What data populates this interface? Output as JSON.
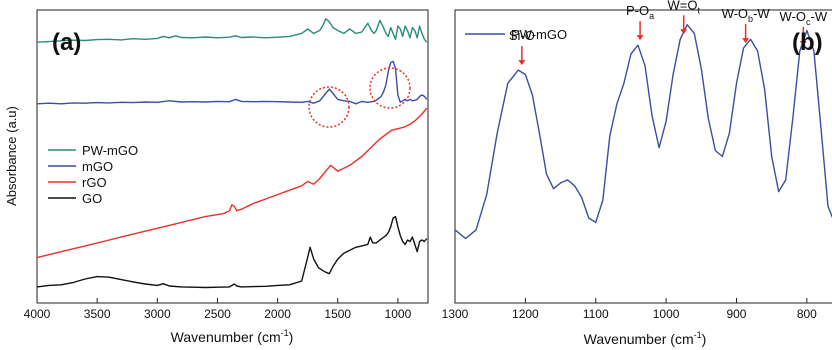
{
  "chart_data": [
    {
      "panel": "(a)",
      "type": "line",
      "xlabel": "Wavenumber (cm",
      "xlabel_sup": "-1",
      "xlabel_close": ")",
      "ylabel": "Absorbance (a.u)",
      "xlim": [
        4000,
        750
      ],
      "xreversed": true,
      "xticks": [
        "4000",
        "3500",
        "3000",
        "2500",
        "2000",
        "1500",
        "1000"
      ],
      "xtick_values": [
        4000,
        3500,
        3000,
        2500,
        2000,
        1500,
        1000
      ],
      "ylim": [
        0,
        10
      ],
      "yticks": false,
      "legend_placement": "left",
      "series": [
        {
          "name": "PW-mGO",
          "color": "#2b8c7c",
          "x": [
            4000,
            3900,
            3800,
            3700,
            3600,
            3500,
            3400,
            3300,
            3200,
            3100,
            3000,
            2950,
            2900,
            2850,
            2800,
            2700,
            2600,
            2500,
            2400,
            2350,
            2300,
            2200,
            2100,
            2000,
            1900,
            1800,
            1750,
            1700,
            1650,
            1620,
            1600,
            1570,
            1540,
            1500,
            1450,
            1400,
            1350,
            1300,
            1250,
            1220,
            1200,
            1180,
            1150,
            1120,
            1100,
            1080,
            1060,
            1040,
            1020,
            1000,
            980,
            960,
            940,
            920,
            900,
            880,
            860,
            840,
            820,
            800,
            780,
            760
          ],
          "y": [
            8.9,
            8.92,
            8.95,
            8.97,
            8.96,
            8.99,
            9.0,
            8.98,
            9.02,
            9.0,
            9.03,
            9.1,
            9.05,
            9.12,
            9.06,
            9.05,
            9.08,
            9.05,
            9.07,
            9.12,
            9.06,
            9.08,
            9.05,
            9.07,
            9.1,
            9.2,
            9.35,
            9.2,
            9.3,
            9.5,
            9.7,
            9.6,
            9.4,
            9.3,
            9.2,
            9.35,
            9.2,
            9.25,
            9.55,
            9.3,
            9.2,
            9.3,
            9.65,
            9.4,
            9.2,
            9.1,
            9.4,
            9.2,
            9.0,
            9.45,
            9.35,
            9.1,
            9.45,
            9.3,
            9.05,
            9.4,
            9.3,
            9.05,
            9.45,
            9.2,
            9.0,
            8.9
          ]
        },
        {
          "name": "mGO",
          "color": "#3b4fa0",
          "x": [
            4000,
            3900,
            3800,
            3700,
            3600,
            3500,
            3400,
            3300,
            3200,
            3100,
            3000,
            2900,
            2800,
            2700,
            2600,
            2500,
            2400,
            2350,
            2300,
            2200,
            2100,
            2000,
            1900,
            1800,
            1750,
            1700,
            1650,
            1600,
            1570,
            1540,
            1500,
            1450,
            1400,
            1350,
            1300,
            1250,
            1200,
            1180,
            1160,
            1140,
            1120,
            1100,
            1080,
            1060,
            1040,
            1020,
            1000,
            980,
            960,
            940,
            920,
            900,
            880,
            860,
            840,
            820,
            800,
            780,
            760
          ],
          "y": [
            6.8,
            6.82,
            6.8,
            6.83,
            6.82,
            6.84,
            6.83,
            6.85,
            6.84,
            6.86,
            6.85,
            6.9,
            6.86,
            6.87,
            6.86,
            6.88,
            6.87,
            6.95,
            6.88,
            6.87,
            6.88,
            6.87,
            6.86,
            6.85,
            6.88,
            6.82,
            6.9,
            7.15,
            7.3,
            7.15,
            6.95,
            6.9,
            6.88,
            6.8,
            6.88,
            6.85,
            6.88,
            6.92,
            6.98,
            7.05,
            7.2,
            7.45,
            7.9,
            8.2,
            8.25,
            8.0,
            7.1,
            6.85,
            6.9,
            6.95,
            6.9,
            6.95,
            6.9,
            6.92,
            6.95,
            7.05,
            7.1,
            7.05,
            6.95
          ]
        },
        {
          "name": "rGO",
          "color": "#e8302a",
          "x": [
            4000,
            3800,
            3600,
            3400,
            3200,
            3000,
            2800,
            2600,
            2450,
            2400,
            2380,
            2360,
            2340,
            2300,
            2200,
            2000,
            1900,
            1800,
            1750,
            1700,
            1650,
            1600,
            1560,
            1530,
            1500,
            1450,
            1400,
            1350,
            1300,
            1250,
            1200,
            1150,
            1100,
            1050,
            1000,
            950,
            900,
            850,
            800,
            760
          ],
          "y": [
            1.55,
            1.75,
            1.95,
            2.15,
            2.35,
            2.55,
            2.75,
            2.95,
            3.05,
            3.15,
            3.35,
            3.3,
            3.15,
            3.2,
            3.4,
            3.7,
            3.85,
            4.0,
            4.15,
            4.05,
            4.25,
            4.5,
            4.7,
            4.6,
            4.5,
            4.6,
            4.7,
            4.85,
            5.0,
            5.2,
            5.4,
            5.6,
            5.75,
            5.9,
            5.95,
            6.0,
            6.1,
            6.25,
            6.45,
            6.65
          ]
        },
        {
          "name": "GO",
          "color": "#111111",
          "x": [
            4000,
            3900,
            3800,
            3700,
            3600,
            3500,
            3400,
            3300,
            3200,
            3100,
            3000,
            2950,
            2900,
            2800,
            2700,
            2600,
            2500,
            2400,
            2360,
            2340,
            2300,
            2200,
            2100,
            2000,
            1900,
            1800,
            1760,
            1730,
            1700,
            1660,
            1620,
            1600,
            1570,
            1540,
            1500,
            1450,
            1400,
            1350,
            1300,
            1250,
            1230,
            1210,
            1180,
            1150,
            1100,
            1080,
            1060,
            1040,
            1020,
            1000,
            980,
            960,
            940,
            920,
            900,
            880,
            860,
            840,
            820,
            800,
            780,
            760
          ],
          "y": [
            0.55,
            0.6,
            0.62,
            0.7,
            0.82,
            0.9,
            0.88,
            0.8,
            0.72,
            0.65,
            0.6,
            0.66,
            0.58,
            0.55,
            0.54,
            0.53,
            0.54,
            0.55,
            0.65,
            0.58,
            0.55,
            0.56,
            0.57,
            0.6,
            0.62,
            0.75,
            1.4,
            1.9,
            1.5,
            1.2,
            1.1,
            1.05,
            1.0,
            1.25,
            1.5,
            1.7,
            1.8,
            1.9,
            1.95,
            2.0,
            2.25,
            2.05,
            2.05,
            2.15,
            2.3,
            2.4,
            2.6,
            2.9,
            2.95,
            2.6,
            2.3,
            2.1,
            2.0,
            2.15,
            2.1,
            2.25,
            2.0,
            1.75,
            2.1,
            2.15,
            2.1,
            2.2
          ]
        }
      ]
    },
    {
      "panel": "(b)",
      "type": "line",
      "xlabel": "Wavenumber (cm",
      "xlabel_sup": "-1",
      "xlabel_close": ")",
      "ylabel": "",
      "xlim": [
        1300,
        760
      ],
      "xreversed": true,
      "xticks": [
        "1300",
        "1200",
        "1100",
        "1000",
        "900",
        "800"
      ],
      "xtick_values": [
        1300,
        1200,
        1100,
        1000,
        900,
        800
      ],
      "ylim": [
        0,
        10
      ],
      "yticks": false,
      "legend_placement": "top-left",
      "series": [
        {
          "name": "PW-mGO",
          "color": "#3b4fa0",
          "x": [
            1300,
            1285,
            1270,
            1255,
            1240,
            1225,
            1210,
            1200,
            1190,
            1180,
            1170,
            1160,
            1150,
            1140,
            1130,
            1120,
            1110,
            1100,
            1090,
            1080,
            1070,
            1060,
            1050,
            1040,
            1030,
            1020,
            1010,
            1000,
            990,
            980,
            970,
            960,
            950,
            940,
            930,
            920,
            910,
            900,
            890,
            880,
            870,
            860,
            850,
            840,
            830,
            820,
            810,
            800,
            790,
            780,
            770,
            760
          ],
          "y": [
            2.5,
            2.2,
            2.5,
            3.7,
            5.8,
            7.5,
            7.95,
            7.8,
            7.1,
            5.8,
            4.4,
            3.9,
            4.1,
            4.2,
            4.0,
            3.6,
            2.9,
            2.75,
            3.5,
            5.7,
            6.8,
            7.5,
            8.5,
            8.8,
            8.1,
            6.4,
            5.3,
            6.2,
            7.8,
            9.0,
            9.5,
            9.2,
            8.0,
            6.3,
            5.2,
            5.0,
            5.8,
            7.5,
            8.7,
            9.0,
            8.6,
            7.3,
            5.0,
            3.8,
            4.2,
            6.3,
            8.6,
            9.3,
            8.6,
            6.0,
            3.3,
            2.7
          ]
        }
      ],
      "annotations": [
        {
          "label": "Si-O",
          "x": 1205
        },
        {
          "label": "P-O",
          "sub": "a",
          "x": 1037
        },
        {
          "label": "W=O",
          "sub": "t",
          "x": 975
        },
        {
          "label": "W-O",
          "sub": "b",
          "tail": "-W",
          "x": 887
        },
        {
          "label": "W-O",
          "sub": "c",
          "tail": "-W",
          "x": 805
        }
      ]
    }
  ]
}
